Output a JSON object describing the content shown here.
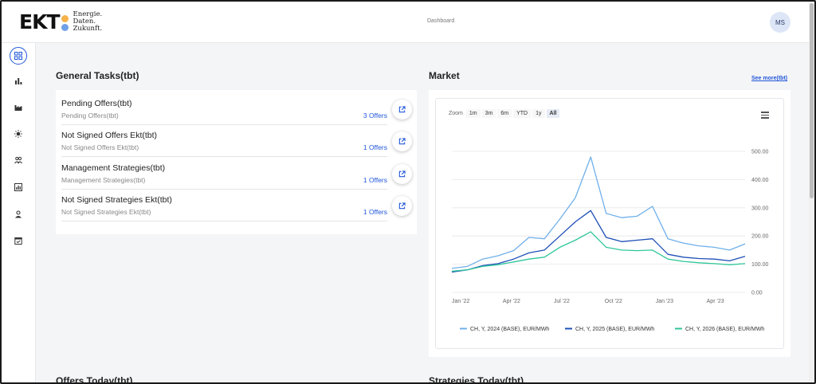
{
  "header": {
    "logo_main": "EKT",
    "logo_line1": "Energie.",
    "logo_line2": "Daten.",
    "logo_line3": "Zukunft.",
    "nav_title": "Dashboard",
    "user_initials": "MS"
  },
  "sidebar": {
    "items": [
      {
        "icon": "dashboard-grid-icon"
      },
      {
        "icon": "bar-chart-icon"
      },
      {
        "icon": "factory-icon"
      },
      {
        "icon": "sun-icon"
      },
      {
        "icon": "users-icon"
      },
      {
        "icon": "report-icon"
      },
      {
        "icon": "user-icon"
      },
      {
        "icon": "calendar-icon"
      }
    ]
  },
  "tasks": {
    "title": "General Tasks(tbt)",
    "rows": [
      {
        "title": "Pending Offers(tbt)",
        "subtitle": "Pending Offers(tbt)",
        "count": "3 Offers"
      },
      {
        "title": "Not Signed Offers Ekt(tbt)",
        "subtitle": "Not Signed Offers Ekt(tbt)",
        "count": "1 Offers"
      },
      {
        "title": "Management Strategies(tbt)",
        "subtitle": "Management Strategies(tbt)",
        "count": "1 Offers"
      },
      {
        "title": "Not Signed Strategies Ekt(tbt)",
        "subtitle": "Not Signed Strategies Ekt(tbt)",
        "count": "1 Offers"
      }
    ]
  },
  "market": {
    "title": "Market",
    "see_more": "See more(tbt)",
    "zoom_label": "Zoom",
    "ranges": [
      "1m",
      "3m",
      "6m",
      "YTD",
      "1y",
      "All"
    ],
    "selected_range": "All"
  },
  "bottom": {
    "offers_title": "Offers Today(tbt)",
    "strategies_title": "Strategies Today(tbt)"
  },
  "chart_data": {
    "type": "line",
    "title": "",
    "xlabel": "",
    "ylabel": "",
    "ylim": [
      0,
      500
    ],
    "yticks": [
      "0.00",
      "100.00",
      "200.00",
      "300.00",
      "400.00",
      "500.00"
    ],
    "xticks": [
      "Jan '22",
      "Apr '22",
      "Jul '22",
      "Oct '22",
      "Jan '23",
      "Apr '23"
    ],
    "x": [
      "2022-01",
      "2022-02",
      "2022-03",
      "2022-04",
      "2022-05",
      "2022-06",
      "2022-07",
      "2022-08-01",
      "2022-08-15",
      "2022-08-26",
      "2022-09",
      "2022-10",
      "2022-11",
      "2022-12",
      "2023-01",
      "2023-02",
      "2023-03",
      "2023-04",
      "2023-05",
      "2023-06"
    ],
    "legend_position": "bottom",
    "series": [
      {
        "name": "CH, Y, 2024 (BASE), EUR/MWh",
        "color": "#6fb0ea",
        "values": [
          85,
          92,
          118,
          130,
          148,
          195,
          190,
          260,
          335,
          480,
          280,
          265,
          270,
          305,
          190,
          175,
          165,
          160,
          150,
          172
        ]
      },
      {
        "name": "CH, Y, 2025 (BASE), EUR/MWh",
        "color": "#1e4fb8",
        "values": [
          72,
          80,
          95,
          102,
          118,
          140,
          150,
          200,
          250,
          290,
          195,
          180,
          185,
          190,
          135,
          125,
          120,
          118,
          112,
          128
        ]
      },
      {
        "name": "CH, Y, 2026 (BASE), EUR/MWh",
        "color": "#2fc79a",
        "values": [
          75,
          80,
          92,
          98,
          108,
          118,
          125,
          160,
          185,
          215,
          160,
          150,
          148,
          150,
          118,
          110,
          105,
          102,
          98,
          102
        ]
      }
    ]
  }
}
